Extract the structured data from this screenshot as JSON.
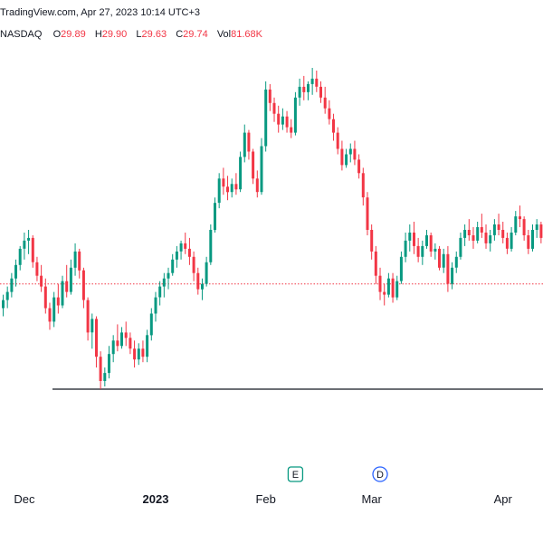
{
  "header": {
    "source_line": "TradingView.com, Apr 27, 2023 10:14 UTC+3",
    "exchange": "NASDAQ",
    "ohlc": [
      {
        "key": "O",
        "value": "29.89"
      },
      {
        "key": "H",
        "value": "29.90"
      },
      {
        "key": "L",
        "value": "29.63"
      },
      {
        "key": "C",
        "value": "29.74"
      },
      {
        "key": "Vol",
        "value": "81.68K"
      }
    ]
  },
  "markers": {
    "earnings": "E",
    "dividend": "D"
  },
  "chart_data": {
    "type": "candlestick",
    "x_ticks": [
      "Dec",
      "2023",
      "Feb",
      "Mar",
      "Apr"
    ],
    "x_tick_index": [
      5,
      36,
      62,
      87,
      118
    ],
    "marker_index": {
      "earnings": 69,
      "dividend": 89
    },
    "reference_line_index": 23,
    "price_line_index": 105,
    "colors": {
      "up": "#089981",
      "down": "#f23645",
      "price_line": "#f23645",
      "reference_line": "#131722",
      "marker_border": "#2962ff",
      "earnings_border": "#089981"
    },
    "candles": [
      [
        29.3,
        29.55,
        29.15,
        29.45
      ],
      [
        29.45,
        29.7,
        29.3,
        29.6
      ],
      [
        29.6,
        29.95,
        29.5,
        29.85
      ],
      [
        29.85,
        30.2,
        29.7,
        30.1
      ],
      [
        30.1,
        30.45,
        30.0,
        30.4
      ],
      [
        30.4,
        30.7,
        30.2,
        30.55
      ],
      [
        30.55,
        30.75,
        30.3,
        30.6
      ],
      [
        30.6,
        30.65,
        30.05,
        30.15
      ],
      [
        30.15,
        30.25,
        29.8,
        29.9
      ],
      [
        29.9,
        30.1,
        29.6,
        29.7
      ],
      [
        29.7,
        29.85,
        29.2,
        29.3
      ],
      [
        29.3,
        29.4,
        28.9,
        29.05
      ],
      [
        29.05,
        29.6,
        28.95,
        29.5
      ],
      [
        29.5,
        29.75,
        29.2,
        29.35
      ],
      [
        29.35,
        29.9,
        29.3,
        29.8
      ],
      [
        29.8,
        30.1,
        29.5,
        29.6
      ],
      [
        29.6,
        30.2,
        29.55,
        30.05
      ],
      [
        30.05,
        30.5,
        29.9,
        30.35
      ],
      [
        30.35,
        30.4,
        29.85,
        30.0
      ],
      [
        30.0,
        30.05,
        29.3,
        29.45
      ],
      [
        29.45,
        29.5,
        28.7,
        28.85
      ],
      [
        28.85,
        29.2,
        28.55,
        29.1
      ],
      [
        29.1,
        29.15,
        28.2,
        28.4
      ],
      [
        28.4,
        28.5,
        27.8,
        27.95
      ],
      [
        27.95,
        28.2,
        27.85,
        28.1
      ],
      [
        28.1,
        28.6,
        28.0,
        28.45
      ],
      [
        28.45,
        28.8,
        28.3,
        28.7
      ],
      [
        28.7,
        29.0,
        28.5,
        28.6
      ],
      [
        28.6,
        28.95,
        28.55,
        28.85
      ],
      [
        28.85,
        29.05,
        28.6,
        28.75
      ],
      [
        28.75,
        28.85,
        28.45,
        28.55
      ],
      [
        28.55,
        28.7,
        28.2,
        28.35
      ],
      [
        28.35,
        28.65,
        28.25,
        28.55
      ],
      [
        28.55,
        28.7,
        28.3,
        28.4
      ],
      [
        28.4,
        28.9,
        28.3,
        28.8
      ],
      [
        28.8,
        29.3,
        28.7,
        29.2
      ],
      [
        29.2,
        29.6,
        29.05,
        29.5
      ],
      [
        29.5,
        29.8,
        29.35,
        29.7
      ],
      [
        29.7,
        29.95,
        29.5,
        29.85
      ],
      [
        29.85,
        30.05,
        29.65,
        29.95
      ],
      [
        29.95,
        30.3,
        29.9,
        30.2
      ],
      [
        30.2,
        30.45,
        30.05,
        30.35
      ],
      [
        30.35,
        30.55,
        30.2,
        30.5
      ],
      [
        30.5,
        30.7,
        30.3,
        30.4
      ],
      [
        30.4,
        30.6,
        30.1,
        30.25
      ],
      [
        30.25,
        30.35,
        29.8,
        29.95
      ],
      [
        29.95,
        30.05,
        29.55,
        29.65
      ],
      [
        29.65,
        29.85,
        29.45,
        29.75
      ],
      [
        29.75,
        30.25,
        29.7,
        30.15
      ],
      [
        30.15,
        30.85,
        30.1,
        30.75
      ],
      [
        30.75,
        31.35,
        30.7,
        31.25
      ],
      [
        31.25,
        31.8,
        31.15,
        31.7
      ],
      [
        31.7,
        31.9,
        31.4,
        31.55
      ],
      [
        31.55,
        31.75,
        31.3,
        31.45
      ],
      [
        31.45,
        31.7,
        31.35,
        31.6
      ],
      [
        31.6,
        31.8,
        31.4,
        31.5
      ],
      [
        31.5,
        32.2,
        31.45,
        32.1
      ],
      [
        32.1,
        32.7,
        32.0,
        32.55
      ],
      [
        32.55,
        32.6,
        32.05,
        32.2
      ],
      [
        32.2,
        32.25,
        31.6,
        31.7
      ],
      [
        31.7,
        31.85,
        31.35,
        31.45
      ],
      [
        31.45,
        32.45,
        31.4,
        32.3
      ],
      [
        32.3,
        33.5,
        32.2,
        33.35
      ],
      [
        33.35,
        33.45,
        32.95,
        33.1
      ],
      [
        33.1,
        33.2,
        32.75,
        32.9
      ],
      [
        32.9,
        33.05,
        32.55,
        32.7
      ],
      [
        32.7,
        33.0,
        32.6,
        32.85
      ],
      [
        32.85,
        32.95,
        32.55,
        32.65
      ],
      [
        32.65,
        32.8,
        32.45,
        32.55
      ],
      [
        32.55,
        33.3,
        32.5,
        33.2
      ],
      [
        33.2,
        33.55,
        33.05,
        33.4
      ],
      [
        33.4,
        33.6,
        33.15,
        33.3
      ],
      [
        33.3,
        33.5,
        33.15,
        33.45
      ],
      [
        33.45,
        33.75,
        33.25,
        33.55
      ],
      [
        33.55,
        33.7,
        33.3,
        33.4
      ],
      [
        33.4,
        33.5,
        33.1,
        33.2
      ],
      [
        33.2,
        33.4,
        32.9,
        33.0
      ],
      [
        33.0,
        33.15,
        32.7,
        32.8
      ],
      [
        32.8,
        32.9,
        32.4,
        32.55
      ],
      [
        32.55,
        32.65,
        32.15,
        32.25
      ],
      [
        32.25,
        32.4,
        31.85,
        31.95
      ],
      [
        31.95,
        32.25,
        31.9,
        32.15
      ],
      [
        32.15,
        32.35,
        32.0,
        32.25
      ],
      [
        32.25,
        32.4,
        31.95,
        32.05
      ],
      [
        32.05,
        32.15,
        31.7,
        31.8
      ],
      [
        31.8,
        31.9,
        31.2,
        31.35
      ],
      [
        31.35,
        31.45,
        30.65,
        30.75
      ],
      [
        30.75,
        30.85,
        30.2,
        30.35
      ],
      [
        30.35,
        30.45,
        29.75,
        29.9
      ],
      [
        29.9,
        30.05,
        29.45,
        29.6
      ],
      [
        29.6,
        29.75,
        29.35,
        29.55
      ],
      [
        29.55,
        29.95,
        29.5,
        29.85
      ],
      [
        29.85,
        29.95,
        29.4,
        29.5
      ],
      [
        29.5,
        29.9,
        29.45,
        29.8
      ],
      [
        29.8,
        30.35,
        29.75,
        30.25
      ],
      [
        30.25,
        30.7,
        30.15,
        30.55
      ],
      [
        30.55,
        30.85,
        30.35,
        30.7
      ],
      [
        30.7,
        30.9,
        30.3,
        30.45
      ],
      [
        30.45,
        30.6,
        30.15,
        30.25
      ],
      [
        30.25,
        30.55,
        30.1,
        30.45
      ],
      [
        30.45,
        30.75,
        30.4,
        30.65
      ],
      [
        30.65,
        30.7,
        30.25,
        30.35
      ],
      [
        30.35,
        30.5,
        30.2,
        30.4
      ],
      [
        30.4,
        30.45,
        30.0,
        30.05
      ],
      [
        30.05,
        30.4,
        29.95,
        30.3
      ],
      [
        30.3,
        30.45,
        29.6,
        29.75
      ],
      [
        29.75,
        30.15,
        29.65,
        30.05
      ],
      [
        30.05,
        30.35,
        29.95,
        30.25
      ],
      [
        30.25,
        30.7,
        30.2,
        30.6
      ],
      [
        30.6,
        30.85,
        30.45,
        30.75
      ],
      [
        30.75,
        30.95,
        30.55,
        30.65
      ],
      [
        30.65,
        30.8,
        30.4,
        30.55
      ],
      [
        30.55,
        30.9,
        30.5,
        30.8
      ],
      [
        30.8,
        31.05,
        30.6,
        30.7
      ],
      [
        30.7,
        30.85,
        30.4,
        30.5
      ],
      [
        30.5,
        30.75,
        30.35,
        30.65
      ],
      [
        30.65,
        30.95,
        30.55,
        30.85
      ],
      [
        30.85,
        31.05,
        30.65,
        30.75
      ],
      [
        30.75,
        30.9,
        30.5,
        30.6
      ],
      [
        30.6,
        30.7,
        30.3,
        30.4
      ],
      [
        30.4,
        30.8,
        30.35,
        30.7
      ],
      [
        30.7,
        31.1,
        30.65,
        31.0
      ],
      [
        31.0,
        31.2,
        30.8,
        30.95
      ],
      [
        30.95,
        31.0,
        30.55,
        30.65
      ],
      [
        30.65,
        30.75,
        30.3,
        30.4
      ],
      [
        30.4,
        30.85,
        30.35,
        30.75
      ],
      [
        30.75,
        30.95,
        30.6,
        30.85
      ],
      [
        30.85,
        30.9,
        30.5,
        30.6
      ]
    ]
  }
}
